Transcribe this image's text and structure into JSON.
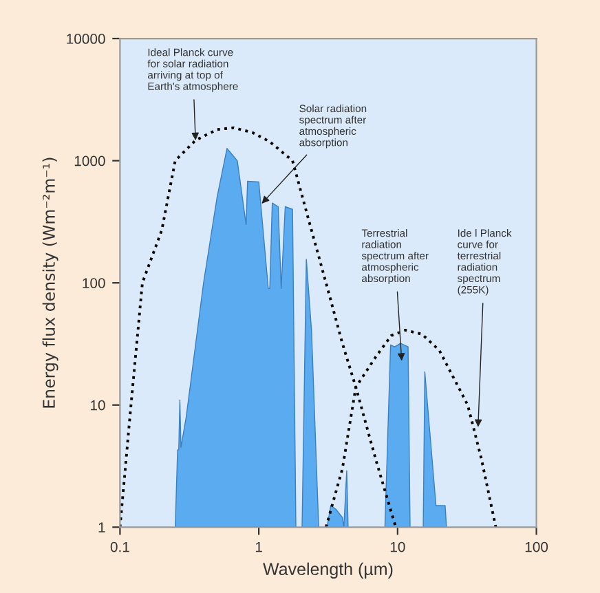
{
  "chart_data": {
    "type": "line",
    "xlabel": "Wavelength (µm)",
    "ylabel": "Energy flux density (Wm⁻²m⁻¹)",
    "log": "xy",
    "xlim": [
      0.1,
      100
    ],
    "ylim": [
      1,
      10000
    ],
    "xticks": [
      {
        "value": 0.1,
        "label": "0.1"
      },
      1,
      10,
      100
    ],
    "yticks": [
      1,
      10,
      100,
      1000,
      10000
    ],
    "grid": false,
    "legend": false,
    "series": [
      {
        "color": "#000000",
        "line_style": "dotted",
        "x": [
          0.1,
          0.12,
          0.145,
          0.2,
          0.25,
          0.35,
          0.5,
          0.66,
          0.9,
          1.2,
          1.75,
          2.3,
          3.05,
          4,
          5,
          7,
          9.7
        ],
        "values": [
          1,
          10,
          100,
          270,
          1000,
          1470,
          1800,
          1860,
          1700,
          1430,
          1000,
          320,
          100,
          32,
          14,
          3.5,
          1
        ]
      },
      {
        "color": "#000000",
        "line_style": "dotted",
        "x": [
          3.05,
          4,
          5,
          7,
          9,
          11.4,
          15,
          20,
          32,
          40,
          51
        ],
        "values": [
          1,
          3,
          14,
          25,
          37,
          41,
          38,
          28,
          10,
          3.7,
          1
        ]
      },
      {
        "type": "area",
        "color": "#5aabf0",
        "x": [
          0.25,
          0.26,
          0.265,
          0.27,
          0.275,
          0.3,
          0.4,
          0.5,
          0.59,
          0.7,
          0.81,
          0.83,
          1.0,
          1.17,
          1.2,
          1.25,
          1.38,
          1.45,
          1.55,
          1.75,
          1.85
        ],
        "values": [
          1,
          4.3,
          4.3,
          11,
          4.5,
          8,
          100,
          500,
          1260,
          1000,
          300,
          680,
          670,
          90,
          90,
          450,
          420,
          90,
          420,
          400,
          1
        ]
      },
      {
        "type": "area",
        "color": "#5aabf0",
        "x": [
          2.05,
          2.2,
          2.4,
          2.7
        ],
        "values": [
          1,
          156,
          40,
          1
        ]
      },
      {
        "type": "area",
        "color": "#5aabf0",
        "x": [
          3.1,
          3.3,
          3.6,
          4.0,
          4.1,
          4.3,
          4.4
        ],
        "values": [
          1,
          1.5,
          1.4,
          1.2,
          1,
          2.9,
          1
        ]
      },
      {
        "type": "area",
        "color": "#5aabf0",
        "x": [
          8.1,
          8.9,
          9.5,
          10.5,
          11.9,
          12.3
        ],
        "values": [
          1,
          31,
          30,
          32,
          30,
          1
        ]
      },
      {
        "type": "area",
        "color": "#5aabf0",
        "x": [
          15.3,
          15.7,
          18.9,
          22,
          22.5
        ],
        "values": [
          1,
          18.7,
          1.5,
          1.5,
          1
        ]
      }
    ],
    "annotations": [
      {
        "text": "Ideal Planck curve\nfor solar radiation\narriving at top of\nEarth's atmosphere",
        "x": 0.35,
        "y": 1470
      },
      {
        "text": "Solar radiation\nspectrum after\natmospheric\nabsorption",
        "x": 1.05,
        "y": 445
      },
      {
        "text": "Terrestrial\nradiation\nspectrum after\natmospheric\nabsorption",
        "x": 10.7,
        "y": 23
      },
      {
        "text": "Ide l Planck\ncurve for\nterrestrial\nradiation\nspectrum\n(255K)",
        "x": 38,
        "y": 6.6
      }
    ]
  }
}
